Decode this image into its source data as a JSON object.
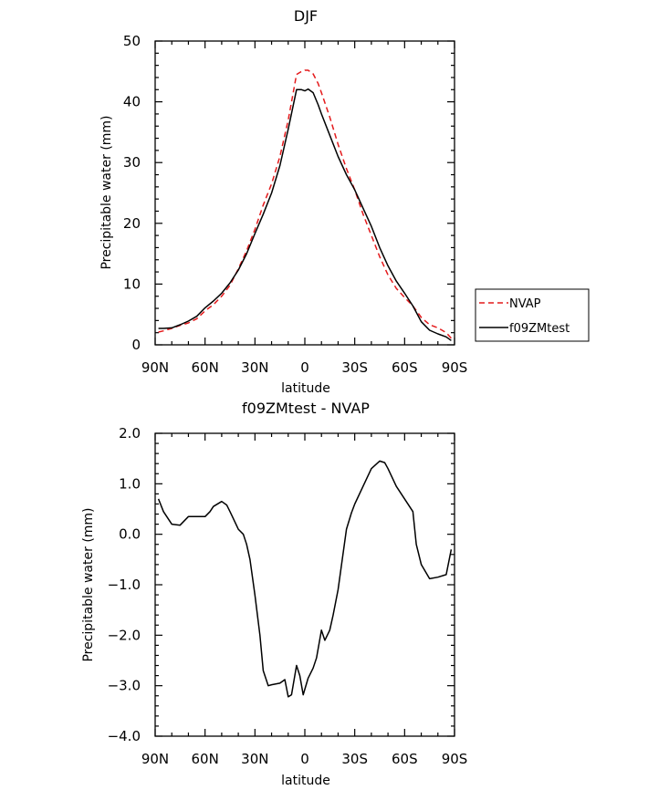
{
  "chart_data": [
    {
      "type": "line",
      "title": "DJF",
      "xlabel": "latitude",
      "ylabel": "Precipitable water (mm)",
      "xlim": [
        90,
        -90
      ],
      "ylim": [
        0,
        50
      ],
      "xtick_values": [
        90,
        60,
        30,
        0,
        -30,
        -60,
        -90
      ],
      "xtick_labels": [
        "90N",
        "60N",
        "30N",
        "0",
        "30S",
        "60S",
        "90S"
      ],
      "ytick_values": [
        0,
        10,
        20,
        30,
        40,
        50
      ],
      "ytick_labels": [
        "0",
        "10",
        "20",
        "30",
        "40",
        "50"
      ],
      "legend_position": "right",
      "series": [
        {
          "name": "NVAP",
          "color": "#e41a1c",
          "dash": "dashed",
          "x": [
            88,
            85,
            80,
            75,
            70,
            65,
            60,
            55,
            50,
            45,
            40,
            35,
            30,
            25,
            20,
            15,
            10,
            5,
            2,
            0,
            -2,
            -5,
            -8,
            -10,
            -15,
            -20,
            -25,
            -30,
            -35,
            -40,
            -45,
            -50,
            -55,
            -60,
            -65,
            -70,
            -75,
            -80,
            -85,
            -88
          ],
          "y": [
            2.1,
            2.3,
            2.7,
            3.2,
            3.6,
            4.3,
            5.6,
            6.6,
            8.0,
            9.8,
            12.5,
            15.5,
            19.0,
            23.0,
            26.5,
            31.0,
            37.0,
            44.5,
            45.0,
            45.2,
            45.2,
            44.6,
            43.0,
            41.5,
            37.5,
            33.0,
            29.0,
            25.5,
            21.5,
            18.0,
            14.5,
            11.5,
            9.3,
            7.8,
            6.4,
            4.5,
            3.3,
            2.8,
            2.0,
            1.1
          ]
        },
        {
          "name": "f09ZMtest",
          "color": "#000000",
          "dash": "solid",
          "x": [
            88,
            85,
            80,
            75,
            70,
            65,
            60,
            55,
            50,
            45,
            40,
            35,
            30,
            25,
            20,
            15,
            10,
            5,
            2,
            0,
            -2,
            -5,
            -8,
            -10,
            -15,
            -20,
            -25,
            -30,
            -35,
            -40,
            -45,
            -50,
            -55,
            -60,
            -65,
            -70,
            -75,
            -80,
            -85,
            -88
          ],
          "y": [
            2.7,
            2.7,
            2.8,
            3.3,
            3.9,
            4.7,
            6.1,
            7.2,
            8.5,
            10.2,
            12.3,
            15.0,
            18.3,
            21.5,
            25.0,
            29.5,
            35.5,
            42.0,
            42.0,
            41.8,
            42.1,
            41.5,
            39.5,
            38.0,
            34.5,
            31.0,
            28.0,
            25.5,
            22.5,
            19.5,
            16.0,
            13.0,
            10.5,
            8.5,
            6.4,
            3.8,
            2.4,
            1.8,
            1.3,
            0.7
          ]
        }
      ]
    },
    {
      "type": "line",
      "title": "f09ZMtest - NVAP",
      "xlabel": "latitude",
      "ylabel": "Precipitable water (mm)",
      "xlim": [
        90,
        -90
      ],
      "ylim": [
        -4,
        2
      ],
      "xtick_values": [
        90,
        60,
        30,
        0,
        -30,
        -60,
        -90
      ],
      "xtick_labels": [
        "90N",
        "60N",
        "30N",
        "0",
        "30S",
        "60S",
        "90S"
      ],
      "ytick_values": [
        2,
        1,
        0,
        -1,
        -2,
        -3,
        -4
      ],
      "ytick_labels": [
        "2.0",
        "1.0",
        "0.0",
        "−1.0",
        "−2.0",
        "−3.0",
        "−4.0"
      ],
      "series": [
        {
          "color": "#000000",
          "dash": "solid",
          "x": [
            88,
            85,
            80,
            75,
            70,
            65,
            60,
            57,
            55,
            50,
            47,
            45,
            40,
            37,
            35,
            33,
            30,
            27,
            25,
            22,
            20,
            15,
            12,
            10,
            8,
            5,
            3,
            1,
            -2,
            -5,
            -7,
            -10,
            -12,
            -15,
            -17,
            -20,
            -25,
            -28,
            -30,
            -35,
            -40,
            -45,
            -48,
            -50,
            -55,
            -60,
            -65,
            -67,
            -70,
            -75,
            -80,
            -85,
            -88
          ],
          "y": [
            0.7,
            0.45,
            0.2,
            0.18,
            0.35,
            0.35,
            0.35,
            0.45,
            0.55,
            0.65,
            0.58,
            0.45,
            0.1,
            0.0,
            -0.2,
            -0.5,
            -1.2,
            -2.0,
            -2.7,
            -3.0,
            -2.98,
            -2.95,
            -2.88,
            -3.22,
            -3.18,
            -2.6,
            -2.8,
            -3.18,
            -2.85,
            -2.65,
            -2.45,
            -1.9,
            -2.1,
            -1.9,
            -1.6,
            -1.1,
            0.1,
            0.42,
            0.6,
            0.95,
            1.3,
            1.45,
            1.42,
            1.3,
            0.95,
            0.7,
            0.45,
            -0.2,
            -0.6,
            -0.88,
            -0.85,
            -0.8,
            -0.3
          ]
        }
      ]
    }
  ]
}
